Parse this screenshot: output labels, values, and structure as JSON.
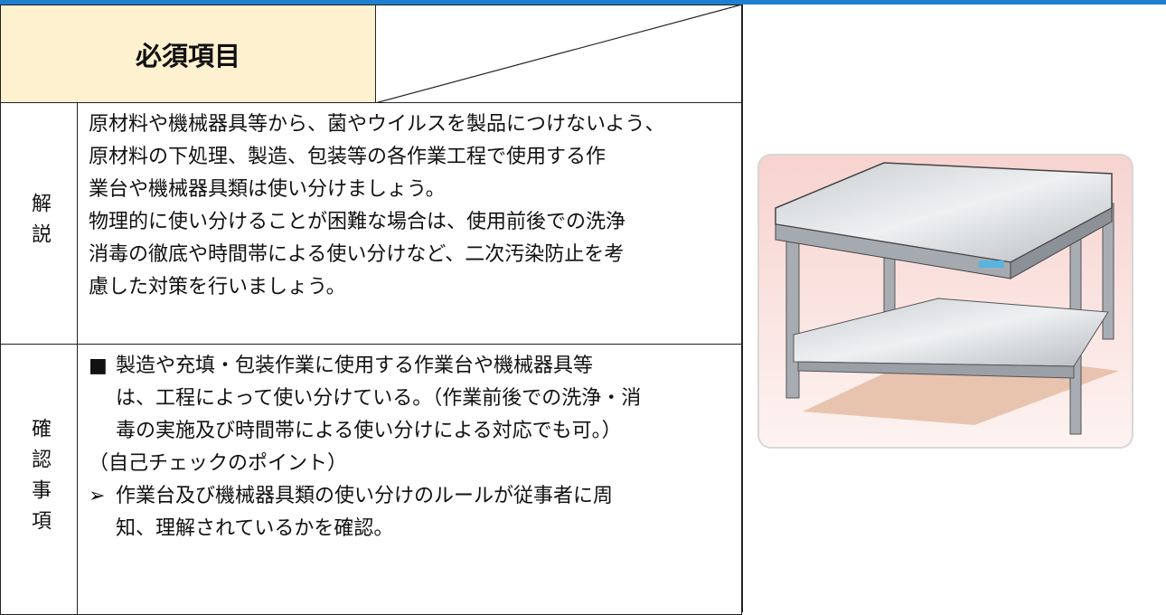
{
  "header": {
    "title": "必須項目"
  },
  "explanation": {
    "label": "解説",
    "lines": [
      "原材料や機械器具等から、菌やウイルスを製品につけないよう、",
      "原材料の下処理、製造、包装等の各作業工程で使用する作",
      "業台や機械器具類は使い分けましょう。",
      "物理的に使い分けることが困難な場合は、使用前後での洗浄",
      "消毒の徹底や時間帯による使い分けなど、二次汚染防止を考",
      "慮した対策を行いましょう。"
    ]
  },
  "check": {
    "label": "確認事項",
    "items": [
      {
        "marker": "■",
        "lines": [
          "製造や充填・包装作業に使用する作業台や機械器具等",
          "は、工程によって使い分けている。（作業前後での洗浄・消",
          "毒の実施及び時間帯による使い分けによる対応でも可。）"
        ]
      },
      {
        "lines": [
          "（自己チェックのポイント）"
        ]
      },
      {
        "marker": "➢",
        "lines": [
          "作業台及び機械器具類の使い分けのルールが従事者に周",
          "知、理解されているかを確認。"
        ]
      }
    ]
  }
}
